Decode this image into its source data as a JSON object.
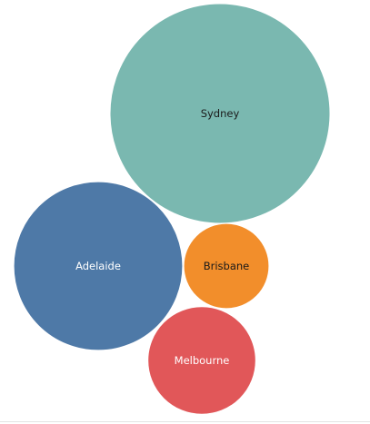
{
  "chart_data": {
    "type": "packed-bubble",
    "title": "",
    "legend": "none",
    "bubbles": [
      {
        "label": "Sydney",
        "value": 100,
        "color": "#7ab8b0",
        "label_color": "#1a1a1a"
      },
      {
        "label": "Adelaide",
        "value": 59,
        "color": "#4e79a7",
        "label_color": "#ffffff"
      },
      {
        "label": "Brisbane",
        "value": 15,
        "color": "#f28e2b",
        "label_color": "#1a1a1a"
      },
      {
        "label": "Melbourne",
        "value": 24,
        "color": "#e15759",
        "label_color": "#ffffff"
      }
    ]
  }
}
